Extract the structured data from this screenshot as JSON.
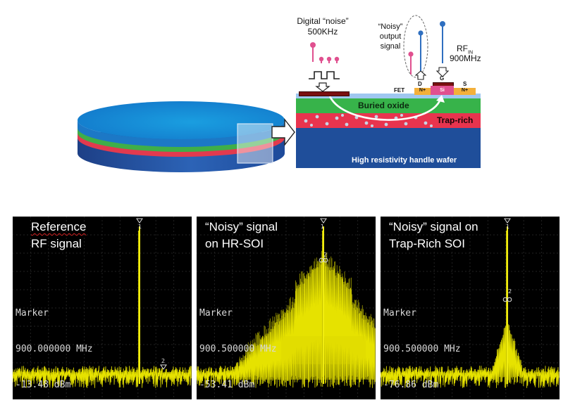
{
  "cross_section": {
    "annotations": {
      "digital_noise_line1": "Digital “noise”",
      "digital_noise_line2": "500KHz",
      "noisy_line1": "“Noisy”",
      "noisy_line2": "output",
      "noisy_line3": "signal",
      "rf_in_main": "RF",
      "rf_in_sub": "IN",
      "rf_in_freq": "900MHz"
    },
    "device": {
      "fet": "FET",
      "drain": "D",
      "gate": "G",
      "source": "S",
      "n_plus_left": "N+",
      "n_plus_right": "N+",
      "si": "Si"
    },
    "layers": {
      "buried_oxide": "Buried oxide",
      "trap_rich": "Trap-rich",
      "handle": "High resistivity handle wafer"
    },
    "colors": {
      "oxide_green": "#37b34a",
      "trap_red": "#e8344e",
      "handle_blue": "#1f4e9a",
      "pink_probe": "#e0508f",
      "blue_probe": "#2f6fc0"
    }
  },
  "spectra": [
    {
      "title_line1": "Reference",
      "title_line2": "RF signal",
      "marker_label": "Marker",
      "marker_freq": "900.000000 MHz",
      "marker_level": "-13.48 dBm",
      "marker_tag_1": "1",
      "marker_tag_2": "2"
    },
    {
      "title_line1": "“Noisy” signal",
      "title_line2": "on HR-SOI",
      "marker_label": "Marker",
      "marker_freq": "900.500000 MHz",
      "marker_level": "-53.41 dBm",
      "marker_tag_1": "1",
      "marker_tag_2": "2"
    },
    {
      "title_line1": "“Noisy” signal on",
      "title_line2": "Trap-Rich SOI",
      "marker_label": "Marker",
      "marker_freq": "900.500000 MHz",
      "marker_level": "-76.86 dBm",
      "marker_tag_1": "1",
      "marker_tag_2": "2"
    }
  ]
}
